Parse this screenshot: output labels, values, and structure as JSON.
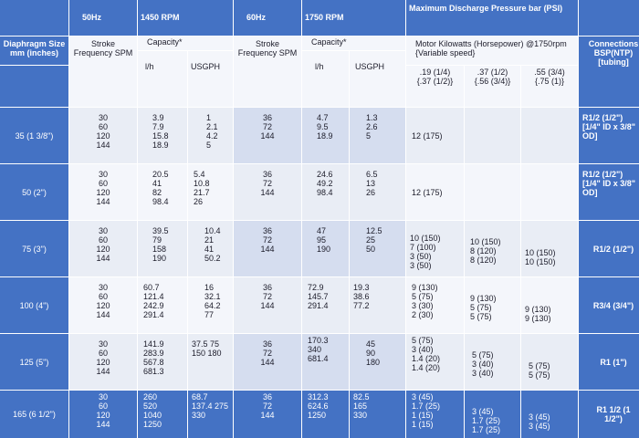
{
  "header": {
    "hz50": "50Hz",
    "rpm1450": "1450 RPM",
    "hz60": "60Hz",
    "rpm1750": "1750 RPM",
    "max_pressure": "Maximum Discharge Pressure bar (PSI)"
  },
  "sub": {
    "diaphragm": "Diaphragm Size\nmm (inches)",
    "stroke1": "Stroke\nFrequency SPM",
    "capacity1": "Capacity*",
    "stroke2": "Stroke\nFrequency SPM",
    "capacity2": "Capacity*",
    "motor": "Motor Kilowatts (Horsepower) @1750rpm\n{Variable speed}",
    "connections": "Connections\nBSP(NTP)\n[tubing]",
    "lh1": "l/h",
    "usgph1": "USGPH",
    "lh2": "l/h",
    "usgph2": "USGPH",
    "kw1": ".19 (1/4)\n{.37 (1/2)}",
    "kw2": ".37 (1/2)\n{.56 (3/4)}",
    "kw3": ".55 (3/4)\n{.75 (1)}"
  },
  "rows": [
    {
      "size": "35 (1 3/8\")",
      "spm50": "30\n60\n120\n144",
      "lh50": "3.9\n7.9\n15.8\n18.9",
      "gph50": "1\n2.1\n4.2\n5",
      "spm60": "36\n72\n144",
      "lh60": "4.7\n9.5\n18.9",
      "gph60": "1.3\n2.6\n5",
      "p1": "12 (175)",
      "p2": "",
      "p3": "",
      "conn": "R1/2          (1/2\")\n[1/4\" ID x 3/8\"\nOD]"
    },
    {
      "size": "50 (2\")",
      "spm50": "30\n60\n120\n144",
      "lh50": "20.5\n41\n82\n98.4",
      "gph50": "5.4\n10.8\n21.7\n26",
      "spm60": "36\n72\n144",
      "lh60": "24.6\n49.2\n98.4",
      "gph60": "6.5\n13\n26",
      "p1": "12 (175)",
      "p2": "",
      "p3": "",
      "conn": "R1/2          (1/2\")\n[1/4\" ID x 3/8\"\nOD]"
    },
    {
      "size": "75 (3\")",
      "spm50": "30\n60\n120\n144",
      "lh50": "39.5\n79\n158\n190",
      "gph50": "10.4\n21\n41\n50.2",
      "spm60": "36\n72\n144",
      "lh60": "47\n95\n190",
      "gph60": "12.5\n25\n50",
      "p1": "10 (150)\n7 (100)\n3 (50)\n3 (50)",
      "p2": "10 (150)\n8 (120)\n8 (120)",
      "p3": "10 (150)\n10 (150)",
      "conn": "R1/2 (1/2\")"
    },
    {
      "size": "100 (4\")",
      "spm50": "30\n60\n120\n144",
      "lh50": "60.7\n121.4\n242.9\n291.4",
      "gph50": "16\n32.1\n64.2\n77",
      "spm60": "36\n72\n144",
      "lh60": "72.9\n145.7\n291.4",
      "gph60": "19.3\n38.6\n77.2",
      "p1": "9 (130)\n5 (75)\n3 (30)\n2 (30)",
      "p2": "9 (130)\n5 (75)\n5 (75)",
      "p3": "9 (130)\n9 (130)",
      "conn": "R3/4 (3/4\")"
    },
    {
      "size": "125 (5\")",
      "spm50": "30\n60\n120\n144",
      "lh50": "141.9\n283.9\n567.8\n681.3",
      "gph50": "37.5 75\n150 180",
      "spm60": "36\n72\n144",
      "lh60": "170.3\n340\n681.4",
      "gph60": "45\n90\n180",
      "p1": "5 (75)\n3 (40)\n1.4 (20)\n1.4 (20)",
      "p2": "5 (75)\n3 (40)\n3 (40)",
      "p3": "5 (75)\n5 (75)",
      "conn": "R1 (1\")"
    },
    {
      "size": "165 (6 1/2\")",
      "spm50": "30\n60\n120\n144",
      "lh50": "260\n520\n1040\n1250",
      "gph50": "68.7\n137.4 275\n330",
      "spm60": "36\n72\n144",
      "lh60": "312.3\n624.6\n1250",
      "gph60": "82.5\n165\n330",
      "p1": "3 (45)\n1.7 (25)\n1 (15)\n1 (15)",
      "p2": "3 (45)\n1.7 (25)\n1.7 (25)",
      "p3": "3 (45)\n3 (45)",
      "conn": "R1 1/2 (1\n1/2\")"
    }
  ]
}
